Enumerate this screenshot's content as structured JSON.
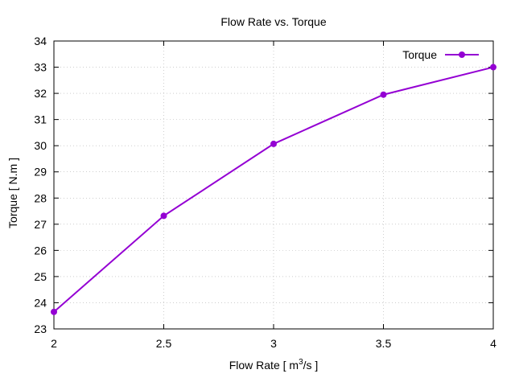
{
  "chart_data": {
    "type": "line",
    "title": "Flow Rate vs. Torque",
    "xlabel_main": "Flow Rate [ m",
    "xlabel_sup": "3",
    "xlabel_tail": "/s ]",
    "ylabel": "Torque [ N.m ]",
    "xlim": [
      2,
      4
    ],
    "ylim": [
      23,
      34
    ],
    "xticks": [
      2,
      2.5,
      3,
      3.5,
      4
    ],
    "xtick_labels": [
      "2",
      "2.5",
      "3",
      "3.5",
      "4"
    ],
    "yticks": [
      23,
      24,
      25,
      26,
      27,
      28,
      29,
      30,
      31,
      32,
      33,
      34
    ],
    "ytick_labels": [
      "23",
      "24",
      "25",
      "26",
      "27",
      "28",
      "29",
      "30",
      "31",
      "32",
      "33",
      "34"
    ],
    "grid": true,
    "legend_position": "top-right",
    "series": [
      {
        "name": "Torque",
        "color": "#9400d3",
        "x": [
          2,
          2.5,
          3,
          3.5,
          4
        ],
        "y": [
          23.65,
          27.32,
          30.07,
          31.95,
          33.0
        ]
      }
    ]
  }
}
